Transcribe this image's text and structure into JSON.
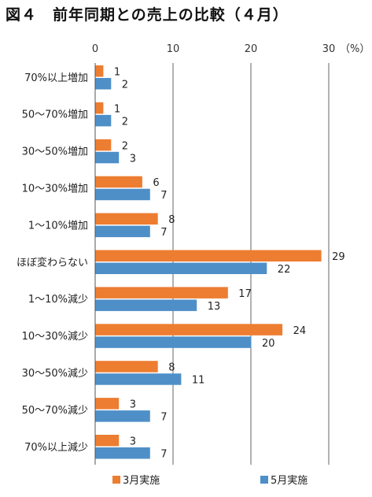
{
  "title": "図４　前年同期との売上の比較（４月）",
  "chart_data": {
    "type": "bar",
    "orientation": "horizontal",
    "title": "図４　前年同期との売上の比較（４月）",
    "xlabel": "",
    "ylabel": "",
    "unit": "（%）",
    "xlim": [
      0,
      30
    ],
    "ticks": [
      0,
      10,
      20,
      30
    ],
    "grid": "vertical",
    "legend_position": "bottom",
    "categories": [
      "70%以上増加",
      "50～70%増加",
      "30～50%増加",
      "10～30%増加",
      "1～10%増加",
      "ほぼ変わらない",
      "1～10%減少",
      "10～30%減少",
      "30～50%減少",
      "50～70%減少",
      "70%以上減少"
    ],
    "series": [
      {
        "name": "3月実施",
        "color": "#ed7d31",
        "values": [
          1,
          1,
          2,
          6,
          8,
          29,
          17,
          24,
          8,
          3,
          3
        ]
      },
      {
        "name": "5月実施",
        "color": "#4e8fc8",
        "values": [
          2,
          2,
          3,
          7,
          7,
          22,
          13,
          20,
          11,
          7,
          7
        ]
      }
    ],
    "legend": [
      "3月実施",
      "5月実施"
    ]
  }
}
